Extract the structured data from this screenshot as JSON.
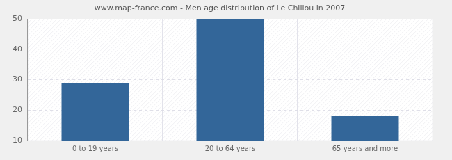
{
  "chart_data": {
    "type": "bar",
    "title": "www.map-france.com - Men age distribution of Le Chillou in 2007",
    "categories": [
      "0 to 19 years",
      "20 to 64 years",
      "65 years and more"
    ],
    "values": [
      29,
      50,
      18
    ],
    "color": "#336699",
    "ylim": [
      10,
      50
    ],
    "yticks": [
      10,
      20,
      30,
      40,
      50
    ],
    "grid": true
  }
}
